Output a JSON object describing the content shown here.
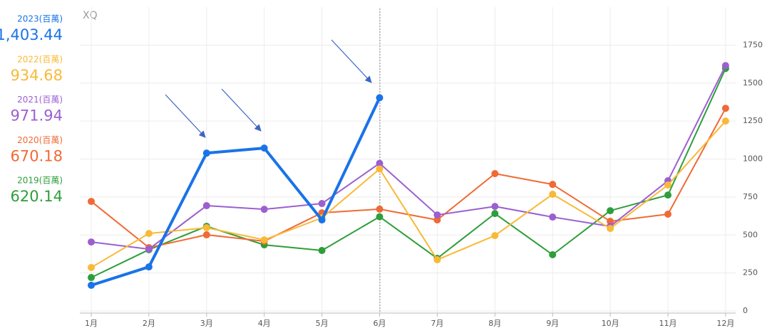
{
  "chart_data": {
    "type": "line",
    "watermark": "XQ",
    "categories": [
      "1月",
      "2月",
      "3月",
      "4月",
      "5月",
      "6月",
      "7月",
      "8月",
      "9月",
      "10月",
      "11月",
      "12月"
    ],
    "ylim": [
      0,
      2000
    ],
    "yticks": [
      0,
      250,
      500,
      750,
      1000,
      1250,
      1500,
      1750
    ],
    "grid": true,
    "series": [
      {
        "name": "2023(百萬)",
        "color": "#1a73e8",
        "hover_value": "1,403.44",
        "values": [
          169,
          290,
          1039,
          1072,
          599,
          1403.44,
          null,
          null,
          null,
          null,
          null,
          null
        ]
      },
      {
        "name": "2022(百萬)",
        "color": "#f9b937",
        "hover_value": "934.68",
        "values": [
          286,
          510,
          548,
          468,
          613,
          934.68,
          337,
          496,
          768,
          543,
          829,
          1250
        ]
      },
      {
        "name": "2021(百萬)",
        "color": "#9c5fd0",
        "hover_value": "971.94",
        "values": [
          454,
          407,
          693,
          669,
          707,
          971.94,
          632,
          688,
          618,
          557,
          857,
          1615
        ]
      },
      {
        "name": "2020(百萬)",
        "color": "#f06a35",
        "hover_value": "670.18",
        "values": [
          721,
          417,
          501,
          459,
          646,
          670.18,
          599,
          904,
          833,
          590,
          637,
          1334
        ]
      },
      {
        "name": "2019(百萬)",
        "color": "#2e9e3a",
        "hover_value": "620.14",
        "values": [
          220,
          403,
          557,
          435,
          398,
          620.14,
          346,
          641,
          370,
          660,
          763,
          1596
        ]
      }
    ]
  }
}
